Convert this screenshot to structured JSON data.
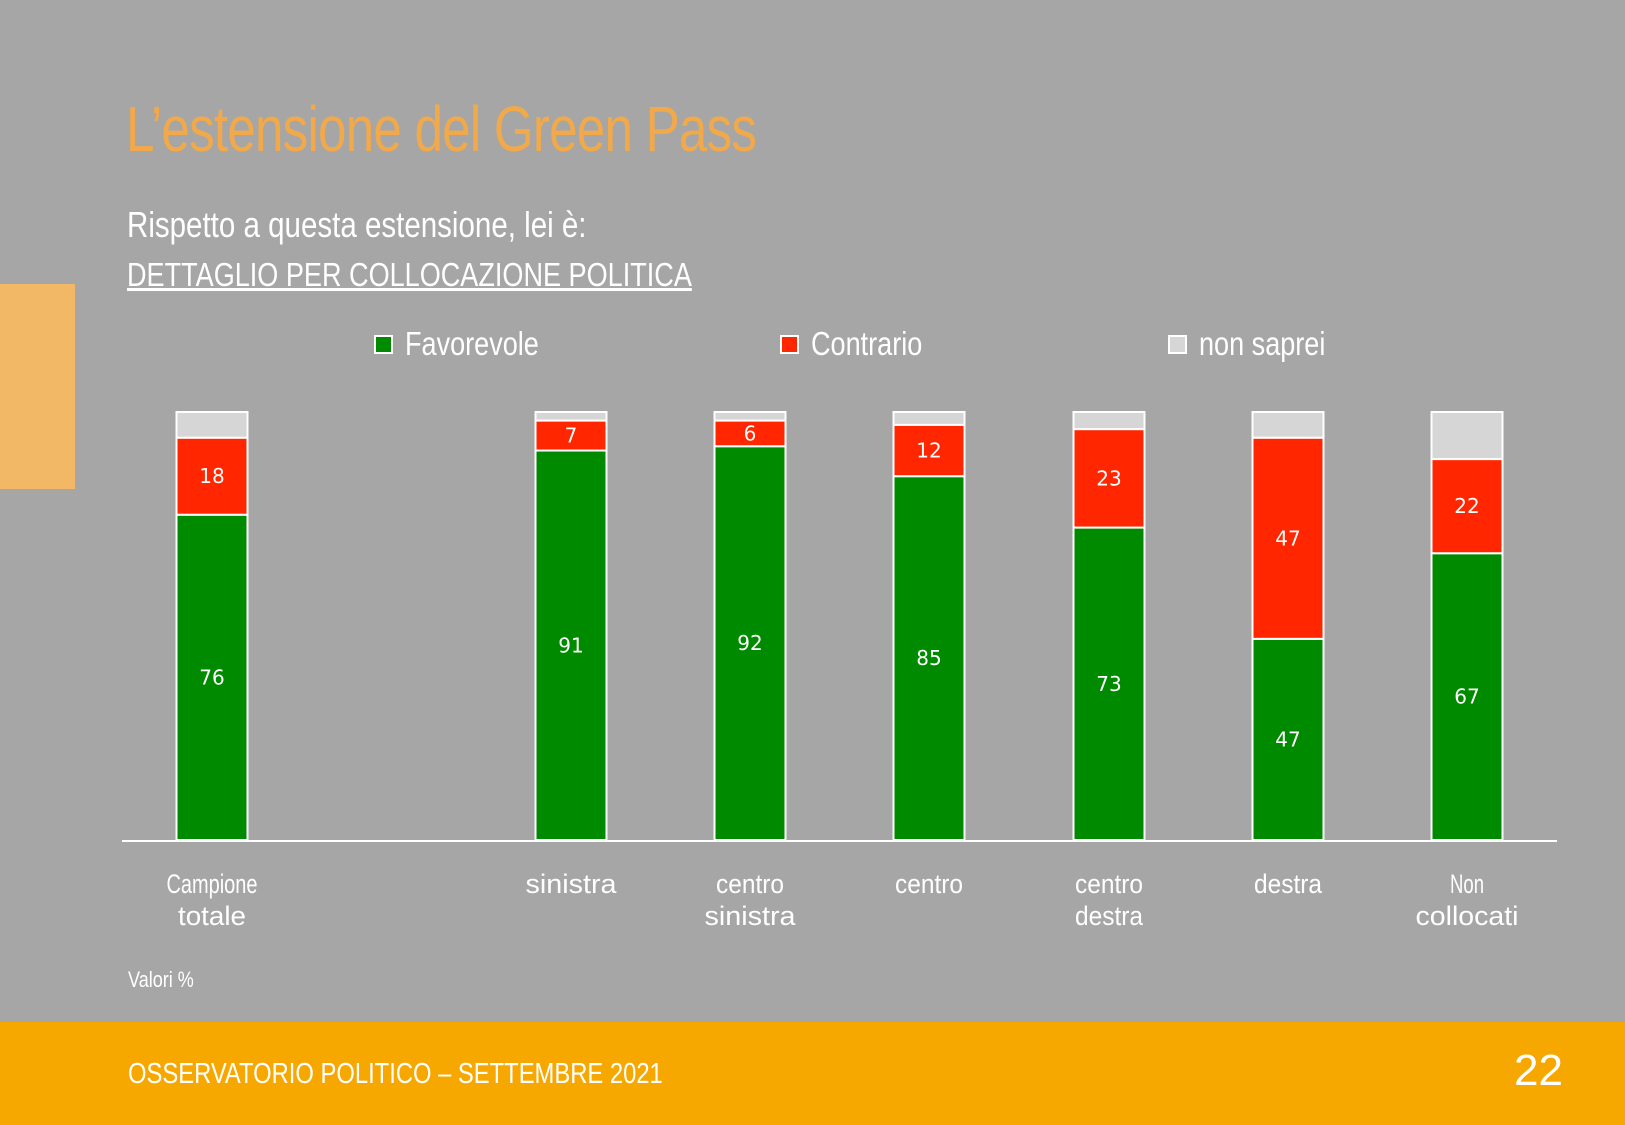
{
  "slide": {
    "title": "L’estensione del Green Pass",
    "subtitle": "Rispetto a questa estensione, lei è:",
    "subtitle2": "DETTAGLIO PER COLLOCAZIONE POLITICA",
    "note": "Valori %",
    "footer": "OSSERVATORIO POLITICO – SETTEMBRE 2021",
    "page_number": "22"
  },
  "legend": [
    {
      "label": "Favorevole",
      "color": "#008a00"
    },
    {
      "label": "Contrario",
      "color": "#ff2600"
    },
    {
      "label": "non saprei",
      "color": "#d6d6d6"
    }
  ],
  "chart_data": {
    "type": "bar",
    "stacked": true,
    "categories": [
      [
        "Campione",
        "totale"
      ],
      [
        "sinistra"
      ],
      [
        "centro",
        "sinistra"
      ],
      [
        "centro"
      ],
      [
        "centro",
        "destra"
      ],
      [
        "destra"
      ],
      [
        "Non",
        "collocati"
      ]
    ],
    "series": [
      {
        "name": "Favorevole",
        "color": "#008a00",
        "values": [
          76,
          91,
          92,
          85,
          73,
          47,
          67
        ]
      },
      {
        "name": "Contrario",
        "color": "#ff2600",
        "values": [
          18,
          7,
          6,
          12,
          23,
          47,
          22
        ]
      },
      {
        "name": "non saprei",
        "color": "#d6d6d6",
        "values": [
          6,
          2,
          2,
          3,
          4,
          6,
          11
        ]
      }
    ],
    "data_labels": {
      "Favorevole": true,
      "Contrario": true,
      "non saprei": false
    },
    "ylim": [
      0,
      100
    ],
    "grid": false,
    "legend_position": "top"
  }
}
